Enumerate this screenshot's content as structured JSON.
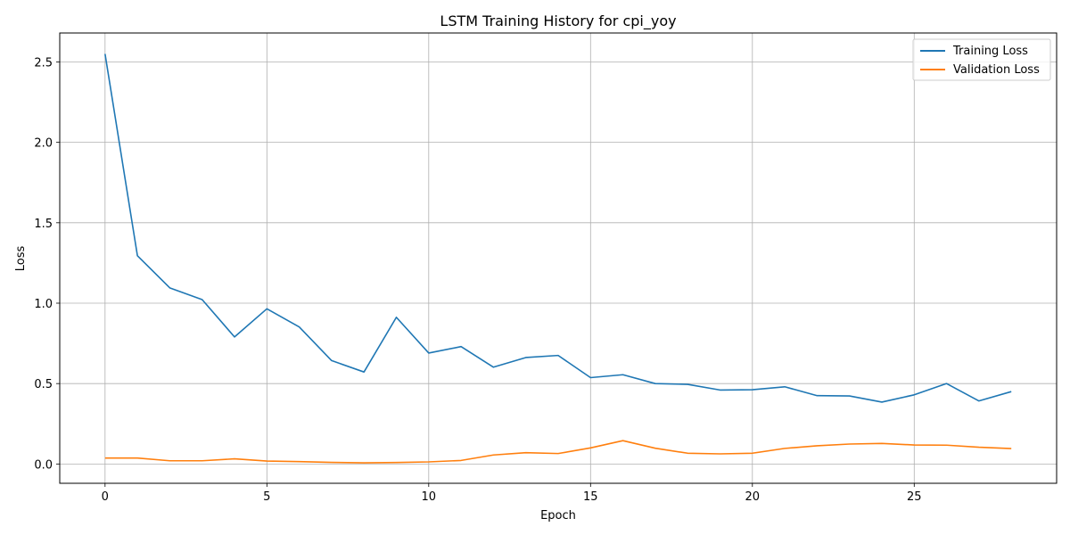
{
  "chart_data": {
    "type": "line",
    "title": "LSTM Training History for cpi_yoy",
    "xlabel": "Epoch",
    "ylabel": "Loss",
    "xlim": [
      -1.4,
      29.4
    ],
    "ylim": [
      -0.12,
      2.68
    ],
    "xticks": [
      0,
      5,
      10,
      15,
      20,
      25
    ],
    "xtick_labels": [
      "0",
      "5",
      "10",
      "15",
      "20",
      "25"
    ],
    "yticks": [
      0.0,
      0.5,
      1.0,
      1.5,
      2.0,
      2.5
    ],
    "ytick_labels": [
      "0.0",
      "0.5",
      "1.0",
      "1.5",
      "2.0",
      "2.5"
    ],
    "grid": true,
    "legend_position": "top-right",
    "x": [
      0,
      1,
      2,
      3,
      4,
      5,
      6,
      7,
      8,
      9,
      10,
      11,
      12,
      13,
      14,
      15,
      16,
      17,
      18,
      19,
      20,
      21,
      22,
      23,
      24,
      25,
      26,
      27,
      28
    ],
    "series": [
      {
        "name": "Training Loss",
        "color": "#1f77b4",
        "values": [
          2.55,
          1.295,
          1.095,
          1.022,
          0.79,
          0.965,
          0.852,
          0.643,
          0.572,
          0.912,
          0.69,
          0.73,
          0.602,
          0.662,
          0.675,
          0.537,
          0.555,
          0.5,
          0.495,
          0.46,
          0.462,
          0.48,
          0.425,
          0.423,
          0.385,
          0.43,
          0.5,
          0.392,
          0.45
        ]
      },
      {
        "name": "Validation Loss",
        "color": "#ff7f0e",
        "values": [
          0.037,
          0.037,
          0.02,
          0.02,
          0.032,
          0.018,
          0.015,
          0.01,
          0.007,
          0.009,
          0.013,
          0.022,
          0.056,
          0.07,
          0.065,
          0.1,
          0.145,
          0.098,
          0.067,
          0.063,
          0.067,
          0.097,
          0.113,
          0.124,
          0.128,
          0.118,
          0.117,
          0.104,
          0.096
        ]
      }
    ]
  }
}
